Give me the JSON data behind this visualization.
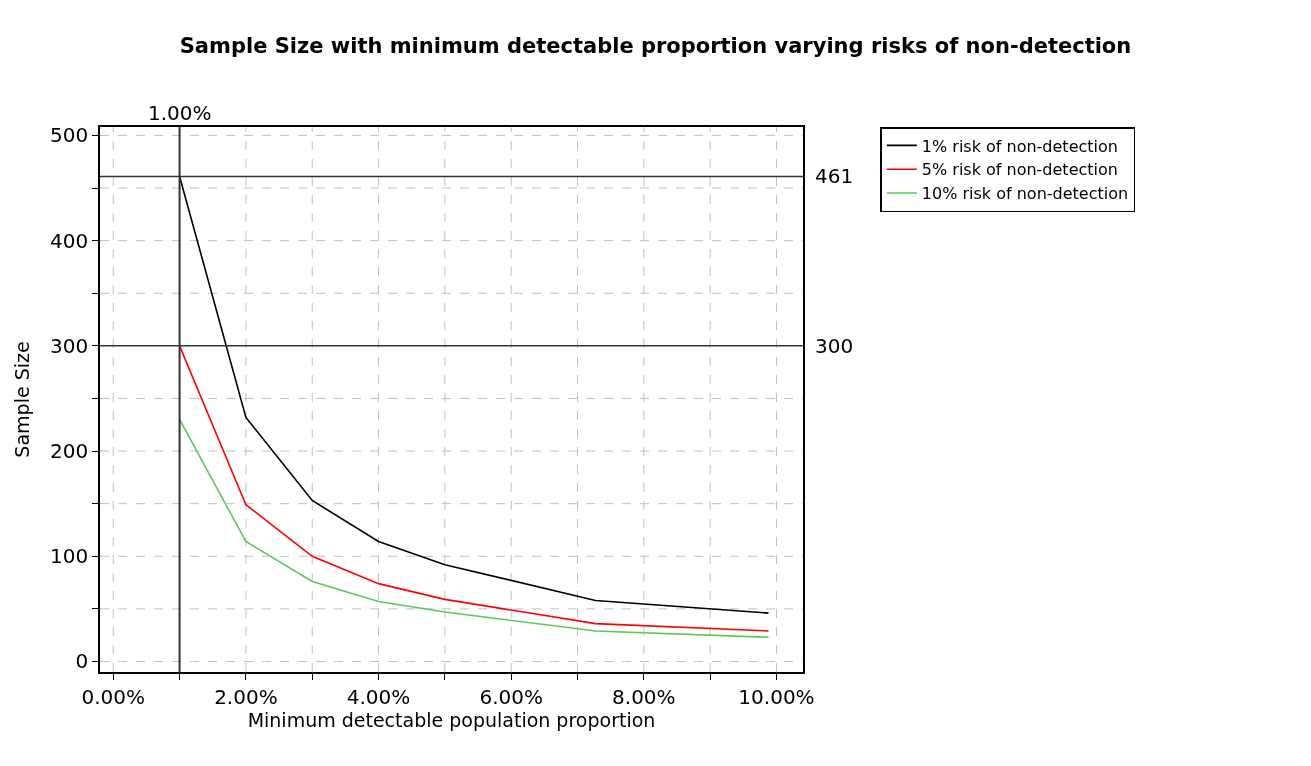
{
  "chart_data": {
    "type": "line",
    "title": "Sample Size with minimum detectable proportion varying risks of non-detection",
    "xlabel": "Minimum detectable population proportion",
    "ylabel": "Sample Size",
    "x": [
      1,
      2,
      3,
      4,
      5,
      7.27,
      9.88
    ],
    "series": [
      {
        "name": "1% risk of non-detection",
        "color": "#000000",
        "values": [
          461,
          232,
          153,
          114,
          92,
          58,
          46
        ]
      },
      {
        "name": "5% risk of non-detection",
        "color": "#ff0000",
        "values": [
          300,
          149,
          100,
          74,
          59,
          36,
          29
        ]
      },
      {
        "name": "10% risk of non-detection",
        "color": "#5ac85a",
        "values": [
          230,
          114,
          76,
          57,
          47,
          29,
          23
        ]
      }
    ],
    "xlim": [
      -0.2,
      10.4
    ],
    "ylim": [
      -10,
      508
    ],
    "xticks": [
      {
        "value": 0,
        "label": "0.00%"
      },
      {
        "value": 1,
        "label": null
      },
      {
        "value": 2,
        "label": "2.00%"
      },
      {
        "value": 3,
        "label": null
      },
      {
        "value": 4,
        "label": "4.00%"
      },
      {
        "value": 5,
        "label": null
      },
      {
        "value": 6,
        "label": "6.00%"
      },
      {
        "value": 7,
        "label": null
      },
      {
        "value": 8,
        "label": "8.00%"
      },
      {
        "value": 9,
        "label": null
      },
      {
        "value": 10,
        "label": "10.00%"
      }
    ],
    "yticks": [
      0,
      {
        "value": 50,
        "label": null
      },
      100,
      {
        "value": 150,
        "label": null
      },
      200,
      {
        "value": 250,
        "label": null
      },
      300,
      {
        "value": 350,
        "label": null
      },
      400,
      {
        "value": 450,
        "label": null
      },
      500
    ],
    "ref_lines": [
      {
        "axis": "y",
        "value": 461,
        "label": "461",
        "color": "#333333"
      },
      {
        "axis": "y",
        "value": 300,
        "label": "300",
        "color": "#333333"
      },
      {
        "axis": "x",
        "value": 1,
        "label": "1.00%",
        "color": "#333333"
      }
    ],
    "grid": true,
    "legend": "top right",
    "line_style": "solid",
    "marker": "none"
  }
}
